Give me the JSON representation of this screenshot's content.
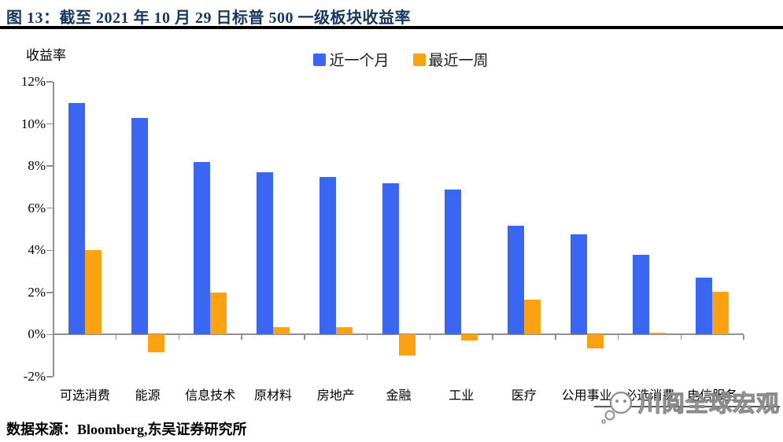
{
  "header": {
    "figure_title": "图 13：截至 2021 年 10 月 29 日标普 500 一级板块收益率",
    "title_color": "#17375E"
  },
  "chart_data": {
    "type": "bar",
    "title": "截至 2021 年 10 月 29 日标普 500 一级板块收益率",
    "ylabel": "收益率",
    "xlabel": "",
    "categories": [
      "可选消费",
      "能源",
      "信息技术",
      "原材料",
      "房地产",
      "金融",
      "工业",
      "医疗",
      "公用事业",
      "必选消费",
      "电信服务"
    ],
    "series": [
      {
        "name": "近一个月",
        "color": "#3B66F2",
        "values": [
          11.0,
          10.3,
          8.2,
          7.7,
          7.5,
          7.2,
          6.9,
          5.15,
          4.75,
          3.8,
          2.7
        ]
      },
      {
        "name": "最近一周",
        "color": "#FBA213",
        "values": [
          4.0,
          -0.85,
          2.0,
          0.35,
          0.35,
          -1.0,
          -0.3,
          1.65,
          -0.65,
          0.1,
          2.05
        ]
      }
    ],
    "ylim": [
      -2,
      12
    ],
    "yticks": [
      {
        "value": 12,
        "label": "12%"
      },
      {
        "value": 10,
        "label": "10%"
      },
      {
        "value": 8,
        "label": "8%"
      },
      {
        "value": 6,
        "label": "6%"
      },
      {
        "value": 4,
        "label": "4%"
      },
      {
        "value": 2,
        "label": "2%"
      },
      {
        "value": 0,
        "label": "0%"
      },
      {
        "value": -2,
        "label": "-2%"
      }
    ],
    "grid": false,
    "legend_position": "top-center",
    "axis_color": "#8F8F8F",
    "text_color": "#000000"
  },
  "watermark": {
    "text": "川阅全球宏观",
    "logo": "speech-bubble-smiley-logo"
  },
  "footer": {
    "source": "数据来源：Bloomberg,东吴证券研究所"
  }
}
